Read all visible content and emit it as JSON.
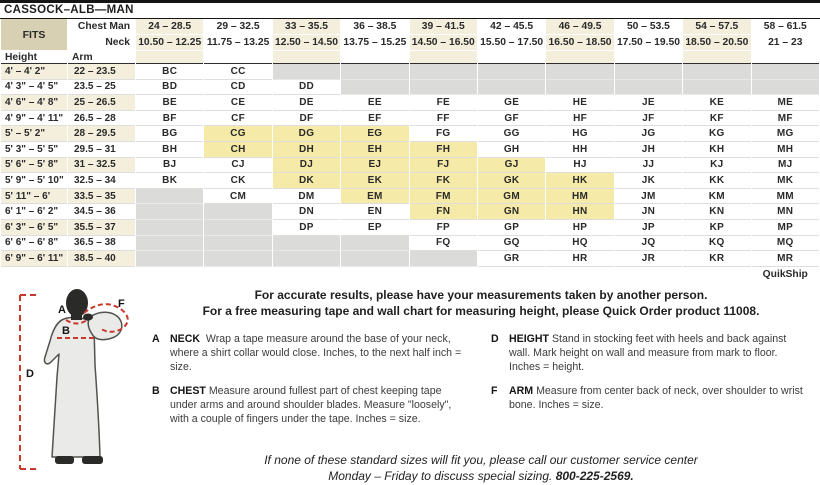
{
  "title": "CASSOCK–ALB—MAN",
  "colors": {
    "header_tan": "#D8D0B2",
    "column_cream": "#F4EFDC",
    "quikship_yellow": "#F6EAA8",
    "unavailable_gray": "#DBDBDA",
    "measure_line_red": "#C9392B"
  },
  "table": {
    "fits_label": "FITS",
    "chest_label": "Chest Man",
    "neck_label": "Neck",
    "height_label": "Height",
    "arm_label": "Arm",
    "quikship_label": "QuikShip",
    "columns": [
      {
        "chest": "24 – 28.5",
        "neck": "10.50 – 12.25"
      },
      {
        "chest": "29 – 32.5",
        "neck": "11.75 – 13.25"
      },
      {
        "chest": "33 – 35.5",
        "neck": "12.50 – 14.50"
      },
      {
        "chest": "36 – 38.5",
        "neck": "13.75 – 15.25"
      },
      {
        "chest": "39 – 41.5",
        "neck": "14.50 – 16.50"
      },
      {
        "chest": "42 – 45.5",
        "neck": "15.50 – 17.50"
      },
      {
        "chest": "46 – 49.5",
        "neck": "16.50 – 18.50"
      },
      {
        "chest": "50 – 53.5",
        "neck": "17.50 – 19.50"
      },
      {
        "chest": "54 – 57.5",
        "neck": "18.50 – 20.50"
      },
      {
        "chest": "58 – 61.5",
        "neck": "21 – 23"
      }
    ],
    "rows": [
      {
        "height": "4' – 4' 2\"",
        "arm": "22 – 23.5",
        "codes": [
          "BC",
          "CC",
          "",
          "",
          "",
          "",
          "",
          "",
          "",
          ""
        ],
        "quikship": []
      },
      {
        "height": "4' 3\" – 4' 5\"",
        "arm": "23.5 – 25",
        "codes": [
          "BD",
          "CD",
          "DD",
          "",
          "",
          "",
          "",
          "",
          "",
          ""
        ],
        "quikship": []
      },
      {
        "height": "4' 6\" – 4' 8\"",
        "arm": "25 – 26.5",
        "codes": [
          "BE",
          "CE",
          "DE",
          "EE",
          "FE",
          "GE",
          "HE",
          "JE",
          "KE",
          "ME"
        ],
        "quikship": []
      },
      {
        "height": "4' 9\" – 4' 11\"",
        "arm": "26.5 – 28",
        "codes": [
          "BF",
          "CF",
          "DF",
          "EF",
          "FF",
          "GF",
          "HF",
          "JF",
          "KF",
          "MF"
        ],
        "quikship": []
      },
      {
        "height": "5' – 5' 2\"",
        "arm": "28 – 29.5",
        "codes": [
          "BG",
          "CG",
          "DG",
          "EG",
          "FG",
          "GG",
          "HG",
          "JG",
          "KG",
          "MG"
        ],
        "quikship": [
          "CG",
          "DG",
          "EG"
        ]
      },
      {
        "height": "5' 3\" – 5' 5\"",
        "arm": "29.5 – 31",
        "codes": [
          "BH",
          "CH",
          "DH",
          "EH",
          "FH",
          "GH",
          "HH",
          "JH",
          "KH",
          "MH"
        ],
        "quikship": [
          "CH",
          "DH",
          "EH",
          "FH"
        ]
      },
      {
        "height": "5' 6\" – 5' 8\"",
        "arm": "31 – 32.5",
        "codes": [
          "BJ",
          "CJ",
          "DJ",
          "EJ",
          "FJ",
          "GJ",
          "HJ",
          "JJ",
          "KJ",
          "MJ"
        ],
        "quikship": [
          "DJ",
          "EJ",
          "FJ",
          "GJ"
        ]
      },
      {
        "height": "5' 9\" – 5' 10\"",
        "arm": "32.5 – 34",
        "codes": [
          "BK",
          "CK",
          "DK",
          "EK",
          "FK",
          "GK",
          "HK",
          "JK",
          "KK",
          "MK"
        ],
        "quikship": [
          "DK",
          "EK",
          "FK",
          "GK",
          "HK"
        ]
      },
      {
        "height": "5' 11\" – 6'",
        "arm": "33.5 – 35",
        "codes": [
          "",
          "CM",
          "DM",
          "EM",
          "FM",
          "GM",
          "HM",
          "JM",
          "KM",
          "MM"
        ],
        "quikship": [
          "EM",
          "FM",
          "GM",
          "HM"
        ]
      },
      {
        "height": "6' 1\" – 6' 2\"",
        "arm": "34.5 – 36",
        "codes": [
          "",
          "",
          "DN",
          "EN",
          "FN",
          "GN",
          "HN",
          "JN",
          "KN",
          "MN"
        ],
        "quikship": [
          "FN",
          "GN",
          "HN"
        ]
      },
      {
        "height": "6' 3\" – 6' 5\"",
        "arm": "35.5 – 37",
        "codes": [
          "",
          "",
          "DP",
          "EP",
          "FP",
          "GP",
          "HP",
          "JP",
          "KP",
          "MP"
        ],
        "quikship": []
      },
      {
        "height": "6' 6\" – 6' 8\"",
        "arm": "36.5 – 38",
        "codes": [
          "",
          "",
          "",
          "",
          "FQ",
          "GQ",
          "HQ",
          "JQ",
          "KQ",
          "MQ"
        ],
        "quikship": []
      },
      {
        "height": "6' 9\" – 6' 11\"",
        "arm": "38.5 – 40",
        "codes": [
          "",
          "",
          "",
          "",
          "",
          "GR",
          "HR",
          "JR",
          "KR",
          "MR"
        ],
        "quikship": []
      }
    ]
  },
  "notes": {
    "line1": "For accurate results, please have your measurements taken by another person.",
    "line2": "For a free measuring tape and wall chart for measuring height, please Quick Order product 11008."
  },
  "instructions": [
    {
      "key": "A",
      "term": "NECK",
      "text": "Wrap a tape measure around the base of your neck, where a shirt collar would close. Inches, to the next half inch = size."
    },
    {
      "key": "B",
      "term": "CHEST",
      "text": "Measure around fullest part of chest keeping tape under arms and around shoulder blades. Measure \"loosely\", with a couple of fingers under the tape. Inches = size."
    },
    {
      "key": "D",
      "term": "HEIGHT",
      "text": "Stand in stocking feet with heels and back against wall. Mark height on wall and measure from mark to floor. Inches = height."
    },
    {
      "key": "F",
      "term": "ARM",
      "text": "Measure from center back of neck, over shoulder to wrist bone. Inches = size."
    }
  ],
  "figure": {
    "label_neck": "A",
    "label_chest": "B",
    "label_height": "D",
    "label_arm": "F"
  },
  "footer": {
    "line1": "If none of these standard sizes will fit you, please call our customer service center",
    "line2": "Monday – Friday to discuss special sizing.",
    "phone": "800-225-2569."
  }
}
